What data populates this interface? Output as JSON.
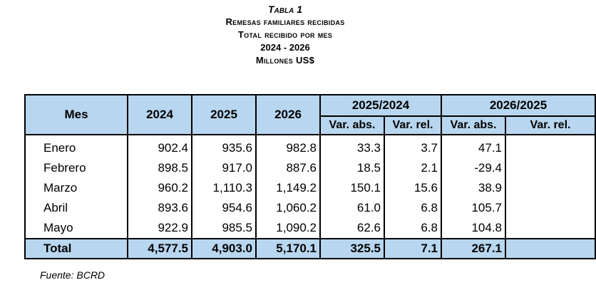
{
  "header": {
    "title": "Tabla 1",
    "subtitle1": "Remesas familiares recibidas",
    "subtitle2": "Total recibido por mes",
    "subtitle3": "2024 - 2026",
    "subtitle4": "Millones US$"
  },
  "table": {
    "col_mes": "Mes",
    "col_2024": "2024",
    "col_2025": "2025",
    "col_2026": "2026",
    "group1": "2025/2024",
    "group2": "2026/2025",
    "var_abs": "Var. abs.",
    "var_rel": "Var. rel.",
    "rows": [
      {
        "mes": "Enero",
        "y2024": "902.4",
        "y2025": "935.6",
        "y2026": "982.8",
        "abs1": "33.3",
        "rel1": "3.7",
        "abs2": "47.1",
        "rel2": ""
      },
      {
        "mes": "Febrero",
        "y2024": "898.5",
        "y2025": "917.0",
        "y2026": "887.6",
        "abs1": "18.5",
        "rel1": "2.1",
        "abs2": "-29.4",
        "rel2": ""
      },
      {
        "mes": "Marzo",
        "y2024": "960.2",
        "y2025": "1,110.3",
        "y2026": "1,149.2",
        "abs1": "150.1",
        "rel1": "15.6",
        "abs2": "38.9",
        "rel2": ""
      },
      {
        "mes": "Abril",
        "y2024": "893.6",
        "y2025": "954.6",
        "y2026": "1,060.2",
        "abs1": "61.0",
        "rel1": "6.8",
        "abs2": "105.7",
        "rel2": ""
      },
      {
        "mes": "Mayo",
        "y2024": "922.9",
        "y2025": "985.5",
        "y2026": "1,090.2",
        "abs1": "62.6",
        "rel1": "6.8",
        "abs2": "104.8",
        "rel2": ""
      }
    ],
    "total": {
      "mes": "Total",
      "y2024": "4,577.5",
      "y2025": "4,903.0",
      "y2026": "5,170.1",
      "abs1": "325.5",
      "rel1": "7.1",
      "abs2": "267.1",
      "rel2": ""
    }
  },
  "footer": {
    "source": "Fuente: BCRD"
  },
  "colors": {
    "header_fill": "#b8d6ef",
    "border": "#000000"
  }
}
